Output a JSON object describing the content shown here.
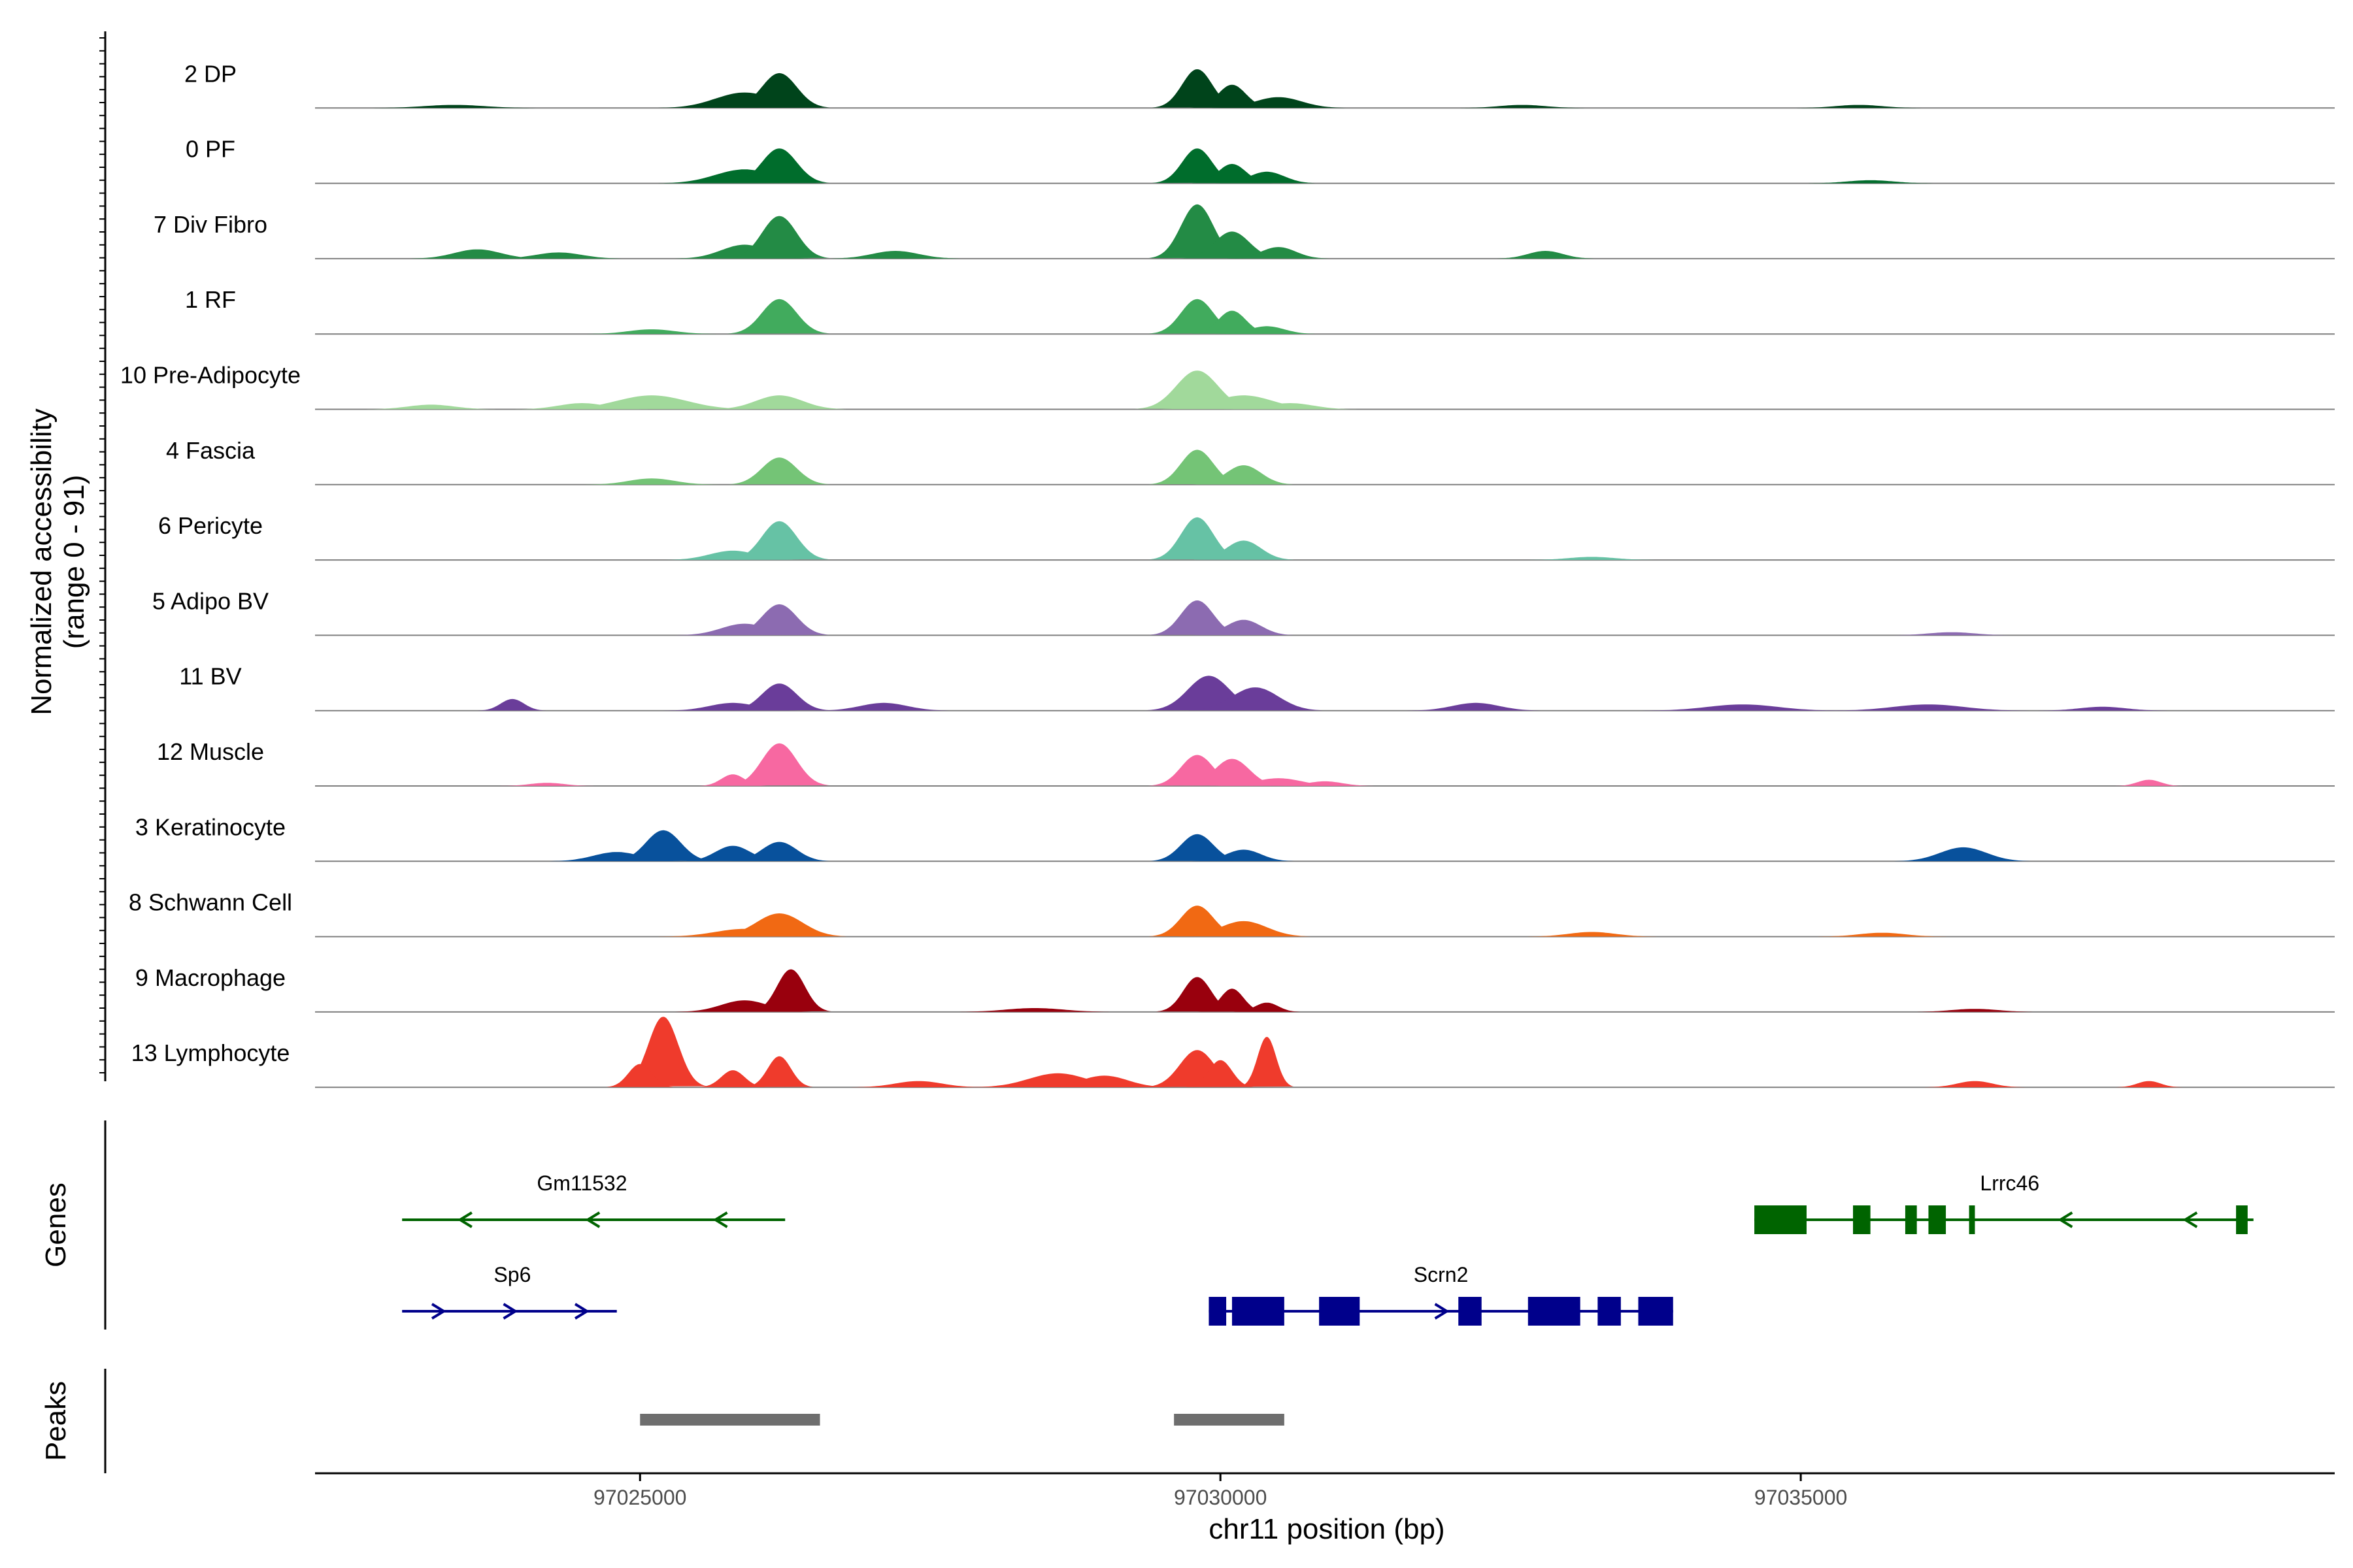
{
  "chart_data": {
    "type": "area",
    "title": "",
    "xlabel": "chr11 position (bp)",
    "ylabel": "Normalized accessibility",
    "ylabel_sub": "(range 0 - 91)",
    "ylim": [
      0,
      91
    ],
    "xlim": [
      97022200,
      97039600
    ],
    "x_ticks": [
      {
        "value": 97025000,
        "label": "97025000"
      },
      {
        "value": 97030000,
        "label": "97030000"
      },
      {
        "value": 97035000,
        "label": "97035000"
      }
    ],
    "series": [
      {
        "name": "2 DP",
        "color": "#00441b",
        "peaks": [
          [
            97023400,
            4,
            260
          ],
          [
            97025900,
            20,
            250
          ],
          [
            97026200,
            45,
            150
          ],
          [
            97029800,
            50,
            130
          ],
          [
            97030100,
            30,
            120
          ],
          [
            97030500,
            14,
            200
          ],
          [
            97032600,
            4,
            200
          ],
          [
            97035500,
            4,
            200
          ]
        ]
      },
      {
        "name": "0 PF",
        "color": "#006d2c",
        "peaks": [
          [
            97025900,
            18,
            250
          ],
          [
            97026200,
            45,
            150
          ],
          [
            97029800,
            45,
            130
          ],
          [
            97030100,
            25,
            120
          ],
          [
            97030400,
            15,
            150
          ],
          [
            97035600,
            4,
            200
          ]
        ]
      },
      {
        "name": "7 Div Fibro",
        "color": "#238b45",
        "peaks": [
          [
            97023600,
            12,
            200
          ],
          [
            97024300,
            8,
            200
          ],
          [
            97025900,
            18,
            200
          ],
          [
            97026200,
            55,
            150
          ],
          [
            97027200,
            10,
            200
          ],
          [
            97029800,
            70,
            140
          ],
          [
            97030100,
            35,
            150
          ],
          [
            97030500,
            15,
            150
          ],
          [
            97032800,
            10,
            150
          ]
        ]
      },
      {
        "name": "1 RF",
        "color": "#41ab5d",
        "peaks": [
          [
            97025100,
            6,
            200
          ],
          [
            97026200,
            45,
            150
          ],
          [
            97029800,
            45,
            140
          ],
          [
            97030100,
            30,
            120
          ],
          [
            97030400,
            10,
            150
          ]
        ]
      },
      {
        "name": "10 Pre-Adipocyte",
        "color": "#a1d99b",
        "peaks": [
          [
            97023200,
            6,
            200
          ],
          [
            97024500,
            8,
            200
          ],
          [
            97025100,
            18,
            300
          ],
          [
            97026200,
            18,
            200
          ],
          [
            97029800,
            50,
            180
          ],
          [
            97030200,
            18,
            250
          ],
          [
            97030600,
            8,
            200
          ]
        ]
      },
      {
        "name": "4 Fascia",
        "color": "#74c476",
        "peaks": [
          [
            97025100,
            8,
            200
          ],
          [
            97026200,
            35,
            150
          ],
          [
            97029800,
            45,
            140
          ],
          [
            97030200,
            25,
            150
          ]
        ]
      },
      {
        "name": "6 Pericyte",
        "color": "#66c2a5",
        "peaks": [
          [
            97025800,
            12,
            200
          ],
          [
            97026200,
            50,
            150
          ],
          [
            97029800,
            55,
            140
          ],
          [
            97030200,
            25,
            150
          ],
          [
            97033200,
            4,
            200
          ]
        ]
      },
      {
        "name": "5 Adipo BV",
        "color": "#8c6bb1",
        "peaks": [
          [
            97025900,
            15,
            200
          ],
          [
            97026200,
            40,
            150
          ],
          [
            97029800,
            45,
            140
          ],
          [
            97030200,
            20,
            150
          ],
          [
            97036300,
            4,
            200
          ]
        ]
      },
      {
        "name": "11 BV",
        "color": "#6a3d9a",
        "peaks": [
          [
            97023900,
            15,
            100
          ],
          [
            97025800,
            10,
            200
          ],
          [
            97026200,
            35,
            150
          ],
          [
            97027100,
            10,
            200
          ],
          [
            97029900,
            45,
            180
          ],
          [
            97030300,
            30,
            200
          ],
          [
            97032200,
            10,
            200
          ],
          [
            97034500,
            8,
            300
          ],
          [
            97036100,
            8,
            300
          ],
          [
            97037600,
            5,
            200
          ]
        ]
      },
      {
        "name": "12 Muscle",
        "color": "#f768a1",
        "peaks": [
          [
            97024200,
            4,
            150
          ],
          [
            97025800,
            15,
            100
          ],
          [
            97026200,
            55,
            150
          ],
          [
            97029800,
            40,
            140
          ],
          [
            97030100,
            35,
            150
          ],
          [
            97030500,
            10,
            200
          ],
          [
            97030900,
            6,
            150
          ],
          [
            97038000,
            8,
            100
          ]
        ]
      },
      {
        "name": "3 Keratinocyte",
        "color": "#08519c",
        "peaks": [
          [
            97024800,
            12,
            200
          ],
          [
            97025200,
            40,
            150
          ],
          [
            97025800,
            20,
            150
          ],
          [
            97026200,
            25,
            150
          ],
          [
            97029800,
            35,
            140
          ],
          [
            97030200,
            15,
            150
          ],
          [
            97036400,
            18,
            200
          ]
        ]
      },
      {
        "name": "8 Schwann Cell",
        "color": "#f16913",
        "peaks": [
          [
            97026200,
            30,
            200
          ],
          [
            97025900,
            10,
            250
          ],
          [
            97029800,
            40,
            140
          ],
          [
            97030200,
            20,
            200
          ],
          [
            97033200,
            6,
            200
          ],
          [
            97035700,
            5,
            200
          ]
        ]
      },
      {
        "name": "9 Macrophage",
        "color": "#99000d",
        "peaks": [
          [
            97025900,
            15,
            200
          ],
          [
            97026300,
            55,
            120
          ],
          [
            97029800,
            45,
            120
          ],
          [
            97030100,
            30,
            100
          ],
          [
            97030400,
            12,
            100
          ],
          [
            97028400,
            5,
            250
          ],
          [
            97036500,
            4,
            200
          ]
        ]
      },
      {
        "name": "13 Lymphocyte",
        "color": "#ef3b2c",
        "peaks": [
          [
            97025200,
            91,
            130
          ],
          [
            97025000,
            30,
            100
          ],
          [
            97025800,
            22,
            100
          ],
          [
            97026200,
            40,
            100
          ],
          [
            97028600,
            18,
            250
          ],
          [
            97029000,
            15,
            200
          ],
          [
            97029800,
            48,
            150
          ],
          [
            97030000,
            35,
            100
          ],
          [
            97030400,
            65,
            80
          ],
          [
            97027400,
            8,
            200
          ],
          [
            97038000,
            8,
            100
          ],
          [
            97036500,
            8,
            150
          ]
        ]
      }
    ],
    "genes_track_label": "Genes",
    "peaks_track_label": "Peaks",
    "genes": [
      {
        "name": "Gm11532",
        "start": 97022950,
        "end": 97026250,
        "strand": "-",
        "color": "#006400",
        "row": 1,
        "exons": []
      },
      {
        "name": "Sp6",
        "start": 97022950,
        "end": 97024800,
        "strand": "+",
        "color": "#00008b",
        "row": 2,
        "exons": []
      },
      {
        "name": "Scrn2",
        "start": 97029900,
        "end": 97033900,
        "strand": "+",
        "color": "#00008b",
        "row": 2,
        "exons": [
          [
            97029900,
            97030050
          ],
          [
            97030100,
            97030550
          ],
          [
            97030850,
            97031200
          ],
          [
            97032050,
            97032250
          ],
          [
            97032650,
            97033100
          ],
          [
            97033250,
            97033450
          ],
          [
            97033600,
            97033900
          ]
        ]
      },
      {
        "name": "Lrrc46",
        "start": 97034600,
        "end": 97038900,
        "strand": "-",
        "color": "#006400",
        "row": 1,
        "exons": [
          [
            97034600,
            97035050
          ],
          [
            97035450,
            97035600
          ],
          [
            97035900,
            97036000
          ],
          [
            97036100,
            97036250
          ],
          [
            97036450,
            97036500
          ],
          [
            97038750,
            97038850
          ]
        ]
      }
    ],
    "peak_regions": [
      [
        97025000,
        97026550
      ],
      [
        97029600,
        97030550
      ]
    ]
  }
}
